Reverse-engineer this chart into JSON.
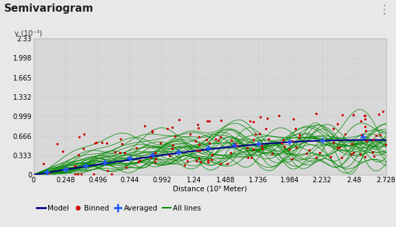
{
  "title": "Semivariogram",
  "ylabel": "γ (10⁻³)",
  "xlabel": "Distance (10⁵ Meter)",
  "xlim": [
    0,
    2.728
  ],
  "ylim": [
    0,
    2.33
  ],
  "yticks": [
    0,
    0.333,
    0.666,
    0.999,
    1.332,
    1.665,
    1.998,
    2.33
  ],
  "xticks": [
    0,
    0.248,
    0.496,
    0.744,
    0.992,
    1.24,
    1.488,
    1.736,
    1.984,
    2.232,
    2.48,
    2.728
  ],
  "bg_color": "#e8e8e8",
  "plot_bg_color": "#d8d8d8",
  "grid_color": "#bbbbbb",
  "model_color": "#00008B",
  "binned_color": "#cc0000",
  "averaged_color": "#2255ff",
  "alllines_color": "#008800",
  "model_sill": 0.595,
  "model_range": 2.5,
  "num_green_lines": 28,
  "num_binned_points": 140,
  "num_averaged_points": 13,
  "seed": 7
}
